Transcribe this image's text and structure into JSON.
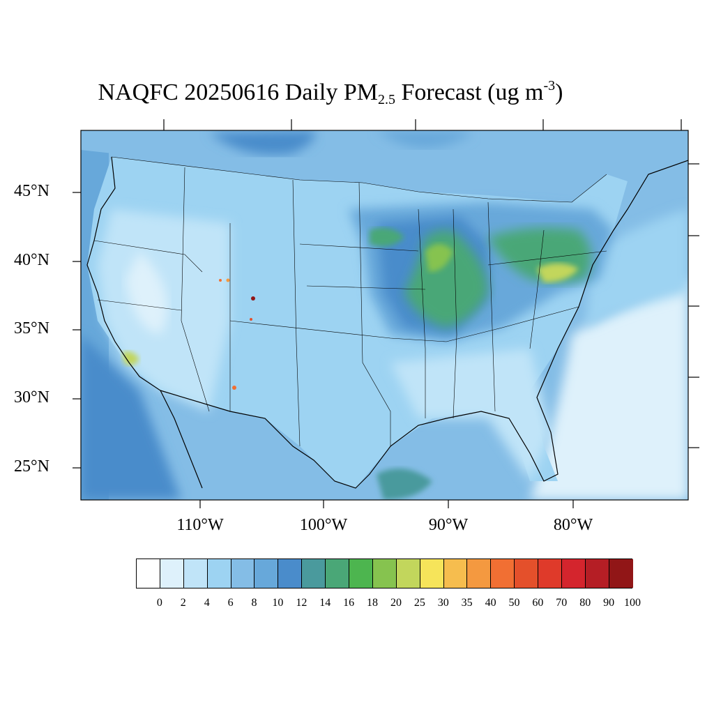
{
  "title": {
    "prefix": "NAQFC 20250616 Daily PM",
    "subscript": "2.5",
    "middle": " Forecast (ug m",
    "superscript": "-3",
    "suffix": ")"
  },
  "lat_labels": [
    "45°N",
    "40°N",
    "35°N",
    "30°N",
    "25°N"
  ],
  "lon_labels": [
    "110°W",
    "100°W",
    "90°W",
    "80°W"
  ],
  "colorbar": {
    "labels": [
      "0",
      "2",
      "4",
      "6",
      "8",
      "10",
      "12",
      "14",
      "16",
      "18",
      "20",
      "25",
      "30",
      "35",
      "40",
      "50",
      "60",
      "70",
      "80",
      "90",
      "100"
    ],
    "colors": [
      "#ffffff",
      "#def1fb",
      "#c0e4f8",
      "#9dd3f2",
      "#84bde6",
      "#67a8da",
      "#4a8ccb",
      "#4a9a9d",
      "#4aa777",
      "#4db54f",
      "#86c34f",
      "#c2d65c",
      "#f6e45a",
      "#f6bd4e",
      "#f49940",
      "#f16f33",
      "#e4502b",
      "#df3a2a",
      "#d4252d",
      "#b51e25",
      "#911617"
    ]
  },
  "map_colors": {
    "ocean": "#def1fb",
    "base": "#9dd3f2",
    "west": "#c0e4f8",
    "moderate": "#84bde6",
    "elevated": "#67a8da",
    "high": "#4a8ccb",
    "teal": "#4a9a9d",
    "green": "#4aa777",
    "bright_green": "#86c34f",
    "yellow": "#c2d65c"
  }
}
